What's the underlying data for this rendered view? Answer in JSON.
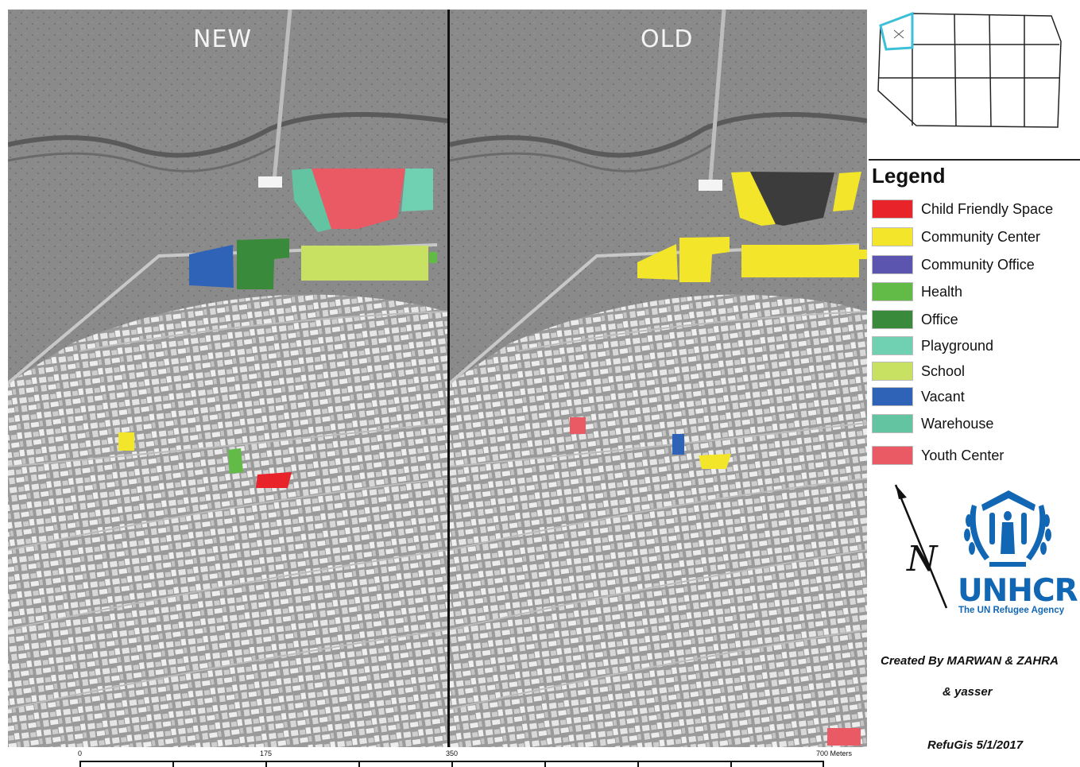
{
  "map": {
    "panel_new_label": "NEW",
    "panel_old_label": "OLD"
  },
  "legend": {
    "title": "Legend",
    "items": [
      {
        "label": "Child Friendly Space",
        "color": "#e8232a"
      },
      {
        "label": "Community Center",
        "color": "#f2e52a"
      },
      {
        "label": "Community Office",
        "color": "#5b55b0"
      },
      {
        "label": "Health",
        "color": "#62bb46"
      },
      {
        "label": "Office",
        "color": "#3a8a3c"
      },
      {
        "label": "Playground",
        "color": "#6fd0b2"
      },
      {
        "label": "School",
        "color": "#c8e163"
      },
      {
        "label": "Vacant",
        "color": "#2f63b7"
      },
      {
        "label": "Warehouse",
        "color": "#63c4a2"
      },
      {
        "label": "Youth Center",
        "color": "#ea5a64"
      }
    ]
  },
  "colors": {
    "old_unlabeled_building": "#3c3c3c",
    "inset_highlight": "#3cc0d8"
  },
  "north_arrow": {
    "label": "N"
  },
  "logo": {
    "name": "UNHCR",
    "tagline": "The UN Refugee Agency",
    "color": "#1267b4"
  },
  "credits": {
    "line1": "Created By MARWAN & ZAHRA",
    "line2": "& yasser",
    "line3": "RefuGis 5/1/2017"
  },
  "scale_bar": {
    "labels": [
      "0",
      "175",
      "350",
      "700 Meters"
    ]
  }
}
